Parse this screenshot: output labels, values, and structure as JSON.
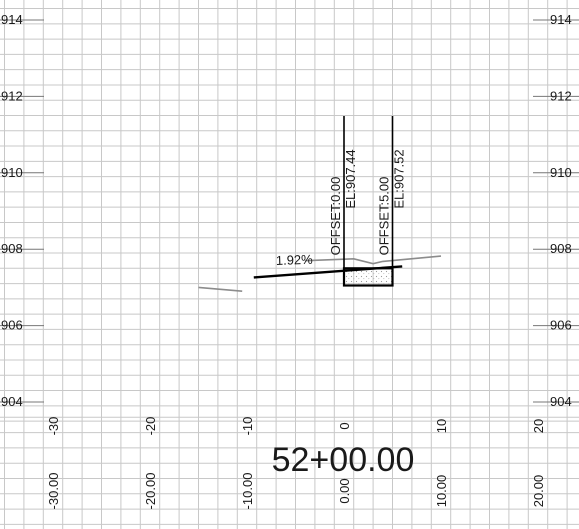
{
  "station": "52+00.00",
  "elevation_labels": [
    "914",
    "912",
    "910",
    "908",
    "906",
    "904"
  ],
  "offset_labels": [
    "-30",
    "-20",
    "-10",
    "0",
    "10",
    "20"
  ],
  "offset_station_labels": [
    "-30.00",
    "-20.00",
    "-10.00",
    "0.00",
    "10.00",
    "20.00"
  ],
  "slope_label": "1.92%",
  "callouts": [
    {
      "offset_text": "OFFSET:0.00",
      "elev_text": "EL:907.44"
    },
    {
      "offset_text": "OFFSET:5.00",
      "elev_text": "EL:907.52"
    }
  ],
  "chart_data": {
    "type": "cross-section",
    "station": "52+00.00",
    "x_axis": {
      "range": [
        -35,
        24
      ],
      "major_step": 10,
      "minor_step": 2
    },
    "y_axis": {
      "range": [
        903.5,
        915
      ],
      "major_step": 2,
      "minor_step": 0.4
    },
    "design_slope": "1.92%",
    "design_surface": [
      [
        -9.3,
        907.26
      ],
      [
        6.0,
        907.55
      ]
    ],
    "existing_ground": [
      [
        [
          -15.0,
          907.0
        ],
        [
          -10.5,
          906.9
        ]
      ],
      [
        [
          -4.0,
          907.7
        ],
        [
          1.0,
          907.75
        ],
        [
          3.0,
          907.62
        ],
        [
          4.0,
          907.68
        ],
        [
          10.0,
          907.82
        ]
      ]
    ],
    "box": {
      "x_range": [
        0,
        5
      ],
      "elev_range": [
        907.05,
        907.5
      ]
    },
    "points": [
      {
        "offset": 0.0,
        "elevation": 907.44,
        "label": "OFFSET:0.00 EL:907.44"
      },
      {
        "offset": 5.0,
        "elevation": 907.52,
        "label": "OFFSET:5.00 EL:907.52"
      }
    ]
  }
}
